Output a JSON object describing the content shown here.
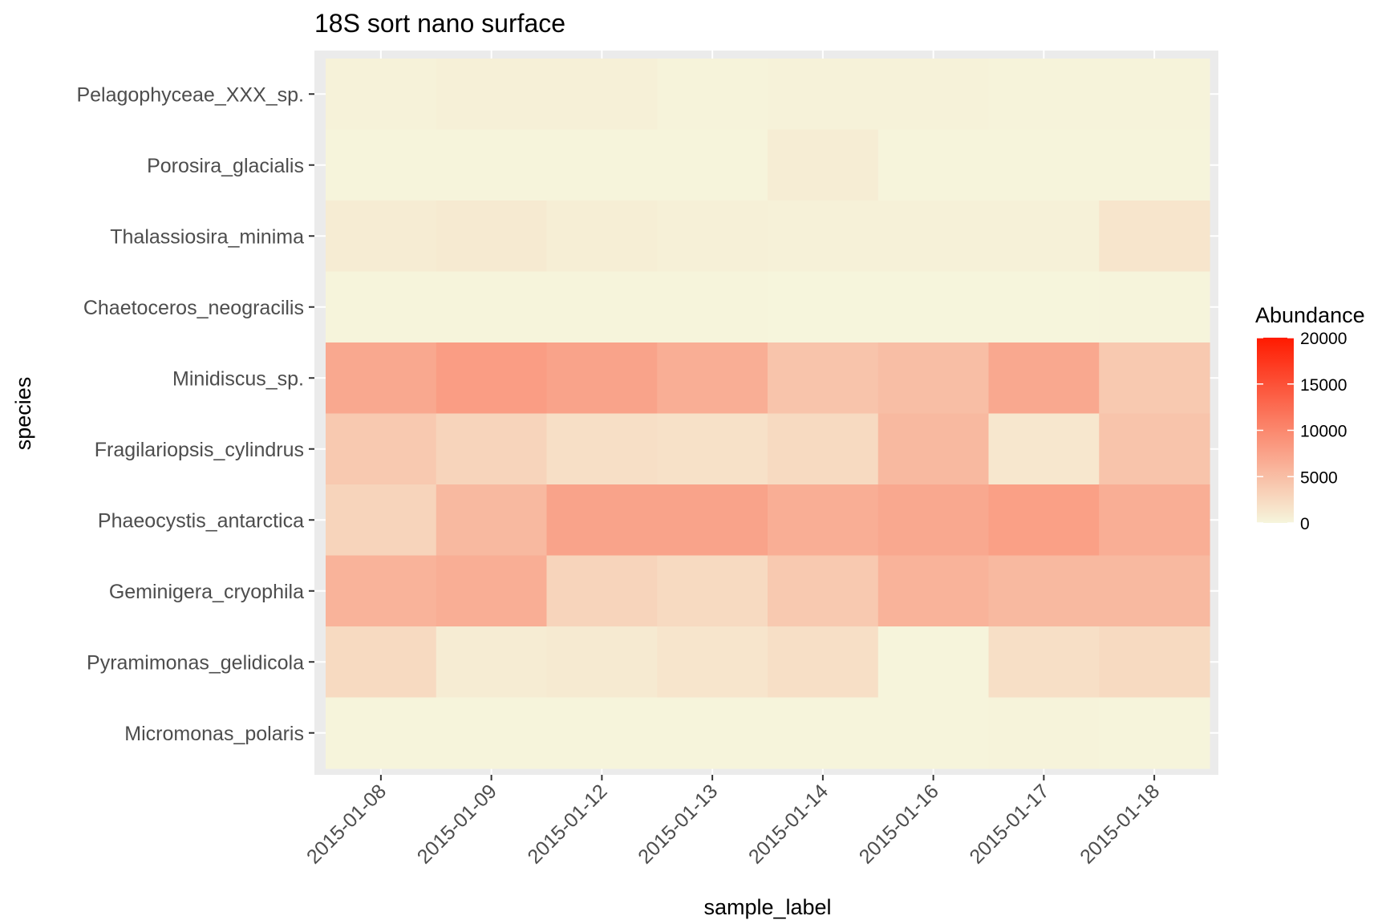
{
  "chart_data": {
    "type": "heatmap",
    "title": "18S sort nano surface",
    "xlabel": "sample_label",
    "ylabel": "species",
    "x": [
      "2015-01-08",
      "2015-01-09",
      "2015-01-12",
      "2015-01-13",
      "2015-01-14",
      "2015-01-16",
      "2015-01-17",
      "2015-01-18"
    ],
    "y": [
      "Pelagophyceae_XXX_sp.",
      "Porosira_glacialis",
      "Thalassiosira_minima",
      "Chaetoceros_neogracilis",
      "Minidiscus_sp.",
      "Fragilariopsis_cylindrus",
      "Phaeocystis_antarctica",
      "Geminigera_cryophila",
      "Pyramimonas_gelidicola",
      "Micromonas_polaris"
    ],
    "values": [
      [
        300,
        500,
        500,
        200,
        300,
        300,
        200,
        200
      ],
      [
        100,
        50,
        50,
        50,
        700,
        100,
        100,
        50
      ],
      [
        800,
        1000,
        600,
        500,
        400,
        400,
        400,
        1500
      ],
      [
        100,
        50,
        50,
        50,
        20,
        20,
        20,
        50
      ],
      [
        7000,
        8000,
        7500,
        6500,
        4500,
        5000,
        7000,
        4000
      ],
      [
        4000,
        3000,
        2000,
        1800,
        2500,
        5500,
        1300,
        4500
      ],
      [
        3000,
        5500,
        7500,
        7500,
        6500,
        7000,
        7800,
        6500
      ],
      [
        6000,
        6500,
        3000,
        2500,
        4000,
        6000,
        5500,
        5500
      ],
      [
        2500,
        800,
        1000,
        1500,
        2000,
        100,
        2000,
        2500
      ],
      [
        100,
        50,
        50,
        50,
        100,
        100,
        200,
        100
      ]
    ],
    "legend": {
      "title": "Abundance",
      "ticks": [
        0,
        5000,
        10000,
        15000,
        20000
      ],
      "range": [
        0,
        20000
      ],
      "low_color": "#f6f5dc",
      "high_color": "#ff1a00",
      "placement": "right"
    },
    "panel_background": "#ebebeb",
    "grid": true
  }
}
